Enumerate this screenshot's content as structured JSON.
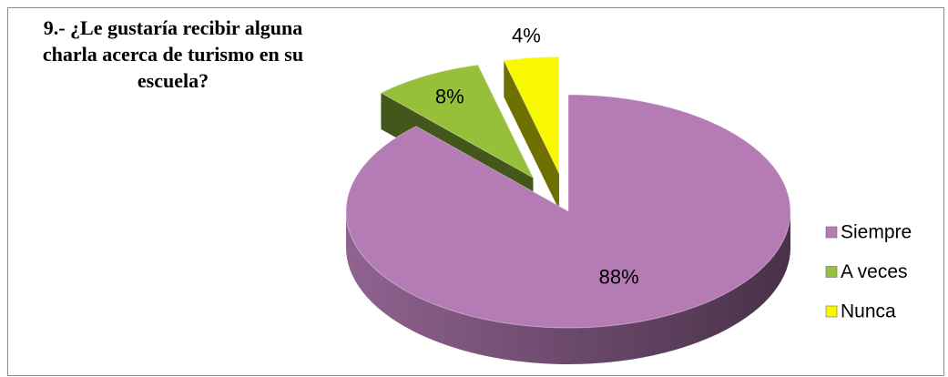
{
  "chart_data": {
    "type": "pie3d",
    "title": "9.- ¿Le gustaría recibir alguna charla acerca de turismo en su escuela?",
    "categories": [
      "Siempre",
      "A veces",
      "Nunca"
    ],
    "values": [
      88,
      8,
      4
    ],
    "value_labels": [
      "88%",
      "8%",
      "4%"
    ],
    "colors": [
      "#b47bb4",
      "#97c03a",
      "#f8f800"
    ],
    "legend": "right"
  }
}
